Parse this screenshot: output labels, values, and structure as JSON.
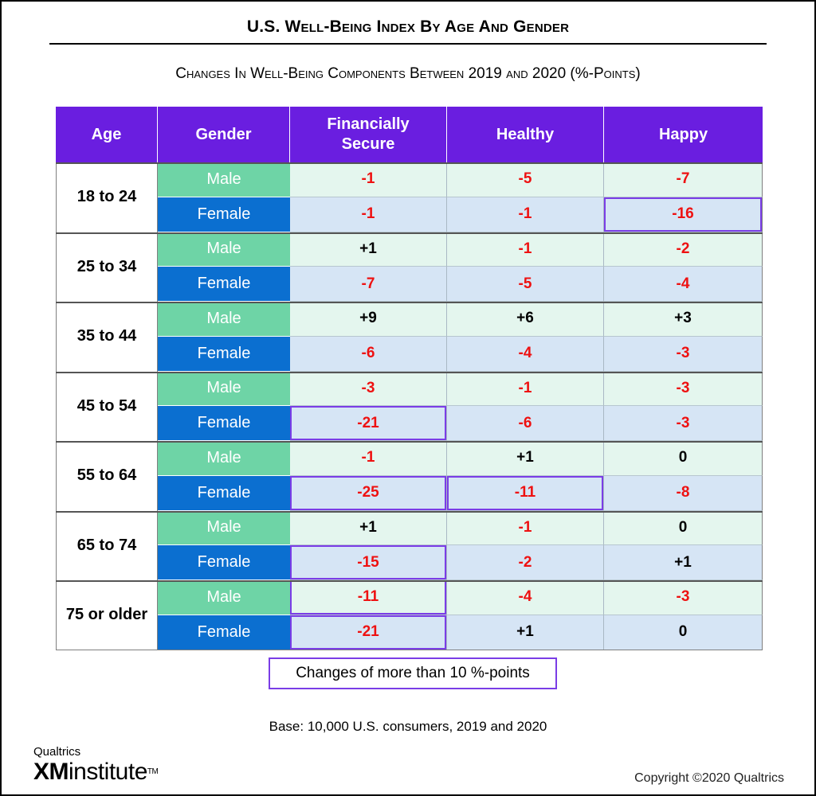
{
  "title": "U.S. Well-Being Index By Age And Gender",
  "subtitle": "Changes In Well-Being Components Between 2019 and 2020 (%-Points)",
  "headers": {
    "age": "Age",
    "gender": "Gender",
    "financial": "Financially Secure",
    "healthy": "Healthy",
    "happy": "Happy"
  },
  "legend_label": "Changes of more than 10 %-points",
  "base_note": "Base: 10,000 U.S. consumers, 2019 and 2020",
  "logo": {
    "top": "Qualtrics",
    "xm": "XM",
    "rest": "institute",
    "tm": "TM"
  },
  "copyright": "Copyright ©2020 Qualtrics",
  "colors": {
    "header": "#6a1ee0",
    "male_label": "#6ed4a6",
    "female_label": "#0b6fd0",
    "male_row": "#e4f6ee",
    "female_row": "#d6e5f5",
    "negative": "#ee1111",
    "highlight": "#7a3de6"
  },
  "chart_data": {
    "type": "table",
    "title": "U.S. Well-Being Index By Age And Gender",
    "columns": [
      "Financially Secure",
      "Healthy",
      "Happy"
    ],
    "highlight_rule": "Changes of more than 10 %-points",
    "groups": [
      {
        "age": "18 to 24",
        "rows": [
          {
            "gender": "Male",
            "values": [
              "-1",
              "-5",
              "-7"
            ],
            "highlight": [
              false,
              false,
              false
            ]
          },
          {
            "gender": "Female",
            "values": [
              "-1",
              "-1",
              "-16"
            ],
            "highlight": [
              false,
              false,
              true
            ]
          }
        ]
      },
      {
        "age": "25 to 34",
        "rows": [
          {
            "gender": "Male",
            "values": [
              "+1",
              "-1",
              "-2"
            ],
            "highlight": [
              false,
              false,
              false
            ]
          },
          {
            "gender": "Female",
            "values": [
              "-7",
              "-5",
              "-4"
            ],
            "highlight": [
              false,
              false,
              false
            ]
          }
        ]
      },
      {
        "age": "35 to 44",
        "rows": [
          {
            "gender": "Male",
            "values": [
              "+9",
              "+6",
              "+3"
            ],
            "highlight": [
              false,
              false,
              false
            ]
          },
          {
            "gender": "Female",
            "values": [
              "-6",
              "-4",
              "-3"
            ],
            "highlight": [
              false,
              false,
              false
            ]
          }
        ]
      },
      {
        "age": "45 to 54",
        "rows": [
          {
            "gender": "Male",
            "values": [
              "-3",
              "-1",
              "-3"
            ],
            "highlight": [
              false,
              false,
              false
            ]
          },
          {
            "gender": "Female",
            "values": [
              "-21",
              "-6",
              "-3"
            ],
            "highlight": [
              true,
              false,
              false
            ]
          }
        ]
      },
      {
        "age": "55 to 64",
        "rows": [
          {
            "gender": "Male",
            "values": [
              "-1",
              "+1",
              "0"
            ],
            "highlight": [
              false,
              false,
              false
            ]
          },
          {
            "gender": "Female",
            "values": [
              "-25",
              "-11",
              "-8"
            ],
            "highlight": [
              true,
              true,
              false
            ]
          }
        ]
      },
      {
        "age": "65 to 74",
        "rows": [
          {
            "gender": "Male",
            "values": [
              "+1",
              "-1",
              "0"
            ],
            "highlight": [
              false,
              false,
              false
            ]
          },
          {
            "gender": "Female",
            "values": [
              "-15",
              "-2",
              "+1"
            ],
            "highlight": [
              true,
              false,
              false
            ]
          }
        ]
      },
      {
        "age": "75 or older",
        "rows": [
          {
            "gender": "Male",
            "values": [
              "-11",
              "-4",
              "-3"
            ],
            "highlight": [
              true,
              false,
              false
            ]
          },
          {
            "gender": "Female",
            "values": [
              "-21",
              "+1",
              "0"
            ],
            "highlight": [
              true,
              false,
              false
            ]
          }
        ]
      }
    ]
  }
}
